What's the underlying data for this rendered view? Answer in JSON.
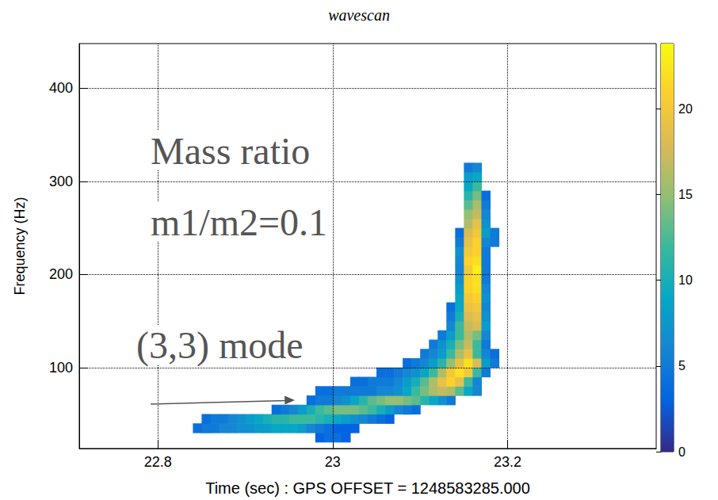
{
  "chart_data": {
    "type": "heatmap",
    "title": "wavescan",
    "x_label": "Time (sec) : GPS OFFSET = 1248583285.000",
    "y_label": "Frequency (Hz)",
    "xlim": [
      22.71,
      23.37
    ],
    "xticks": [
      22.8,
      23,
      23.2
    ],
    "ylim": [
      13,
      448
    ],
    "yticks": [
      100,
      200,
      300,
      400
    ],
    "grid": true,
    "annotations": [
      "Mass ratio",
      "m1/m2=0.1",
      "(3,3) mode"
    ],
    "colorbar": {
      "range": [
        0,
        23.8
      ],
      "ticks": [
        0,
        5,
        10,
        15,
        20
      ]
    },
    "cells": {
      "time_step": 0.01,
      "frequency_step": 10,
      "rows": [
        {
          "frequency": 20,
          "start": 22.98,
          "values": [
            3,
            4,
            4,
            3
          ]
        },
        {
          "frequency": 30,
          "start": 22.84,
          "values": [
            4,
            5,
            5,
            6,
            6,
            7,
            7,
            8,
            8,
            9,
            9,
            9,
            8,
            6,
            5,
            4,
            3,
            3,
            3
          ]
        },
        {
          "frequency": 40,
          "start": 22.85,
          "values": [
            4,
            5,
            5,
            6,
            7,
            8,
            9,
            10,
            11,
            11,
            12,
            12,
            12,
            11,
            10,
            9,
            8,
            7,
            6,
            5,
            4,
            3
          ]
        },
        {
          "frequency": 50,
          "start": 22.93,
          "values": [
            4,
            5,
            6,
            8,
            10,
            12,
            13,
            14,
            14,
            14,
            13,
            12,
            10,
            8,
            6,
            5,
            4
          ]
        },
        {
          "frequency": 60,
          "start": 22.97,
          "values": [
            4,
            5,
            5,
            6,
            7,
            9,
            11,
            13,
            14,
            15,
            15,
            14,
            13,
            11,
            9,
            7,
            5
          ]
        },
        {
          "frequency": 70,
          "start": 22.98,
          "values": [
            4,
            4,
            5,
            5,
            5,
            5,
            5,
            6,
            6,
            7,
            9,
            12,
            14,
            16,
            17,
            16,
            13,
            9,
            6
          ]
        },
        {
          "frequency": 80,
          "start": 23.02,
          "values": [
            4,
            4,
            5,
            5,
            5,
            6,
            8,
            10,
            13,
            16,
            19,
            21,
            19,
            12,
            6
          ]
        },
        {
          "frequency": 90,
          "start": 23.05,
          "values": [
            4,
            4,
            5,
            6,
            7,
            9,
            12,
            16,
            20,
            22,
            20,
            12,
            5
          ]
        },
        {
          "frequency": 100,
          "start": 23.08,
          "values": [
            4,
            5,
            6,
            8,
            11,
            15,
            19,
            22,
            18,
            8,
            5
          ]
        },
        {
          "frequency": 110,
          "start": 23.1,
          "values": [
            5,
            6,
            8,
            12,
            16,
            19,
            12,
            6,
            4
          ]
        },
        {
          "frequency": 120,
          "start": 23.11,
          "values": [
            5,
            7,
            10,
            14,
            17,
            12,
            5
          ]
        },
        {
          "frequency": 130,
          "start": 23.12,
          "values": [
            5,
            8,
            12,
            16,
            14,
            6
          ]
        },
        {
          "frequency": 140,
          "start": 23.13,
          "values": [
            6,
            12,
            17,
            18,
            8
          ]
        },
        {
          "frequency": 150,
          "start": 23.13,
          "values": [
            5,
            10,
            18,
            19,
            7
          ]
        },
        {
          "frequency": 160,
          "start": 23.13,
          "values": [
            4,
            9,
            19,
            20,
            6
          ]
        },
        {
          "frequency": 170,
          "start": 23.14,
          "values": [
            9,
            20,
            21,
            7
          ]
        },
        {
          "frequency": 180,
          "start": 23.14,
          "values": [
            8,
            21,
            22,
            6
          ]
        },
        {
          "frequency": 190,
          "start": 23.14,
          "values": [
            7,
            21,
            22,
            5
          ]
        },
        {
          "frequency": 200,
          "start": 23.14,
          "values": [
            6,
            20,
            23,
            5
          ]
        },
        {
          "frequency": 210,
          "start": 23.14,
          "values": [
            6,
            21,
            22,
            5
          ]
        },
        {
          "frequency": 220,
          "start": 23.14,
          "values": [
            7,
            20,
            21,
            5
          ]
        },
        {
          "frequency": 230,
          "start": 23.14,
          "values": [
            5,
            19,
            21,
            6,
            5
          ]
        },
        {
          "frequency": 240,
          "start": 23.14,
          "values": [
            4,
            18,
            20,
            8,
            5
          ]
        },
        {
          "frequency": 250,
          "start": 23.15,
          "values": [
            16,
            19,
            7
          ]
        },
        {
          "frequency": 260,
          "start": 23.15,
          "values": [
            15,
            17,
            6
          ]
        },
        {
          "frequency": 270,
          "start": 23.15,
          "values": [
            13,
            16,
            5
          ]
        },
        {
          "frequency": 280,
          "start": 23.15,
          "values": [
            11,
            14,
            4
          ]
        },
        {
          "frequency": 290,
          "start": 23.15,
          "values": [
            9,
            12
          ]
        },
        {
          "frequency": 300,
          "start": 23.15,
          "values": [
            8,
            9
          ]
        },
        {
          "frequency": 310,
          "start": 23.15,
          "values": [
            5,
            6
          ]
        }
      ]
    }
  }
}
